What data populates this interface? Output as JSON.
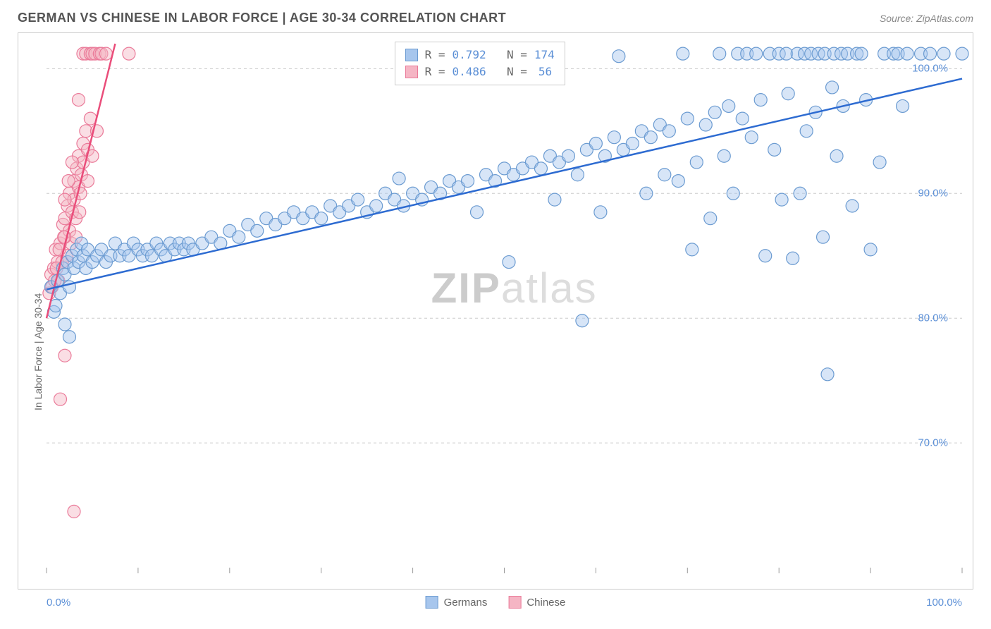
{
  "title": "GERMAN VS CHINESE IN LABOR FORCE | AGE 30-34 CORRELATION CHART",
  "source": "Source: ZipAtlas.com",
  "watermark": {
    "bold": "ZIP",
    "light": "atlas"
  },
  "ylabel": "In Labor Force | Age 30-34",
  "chart": {
    "type": "scatter",
    "xlim": [
      0,
      100
    ],
    "ylim": [
      60,
      102
    ],
    "yticks": [
      {
        "v": 70,
        "label": "70.0%"
      },
      {
        "v": 80,
        "label": "80.0%"
      },
      {
        "v": 90,
        "label": "90.0%"
      },
      {
        "v": 100,
        "label": "100.0%"
      }
    ],
    "xticks_major": [
      0,
      10,
      20,
      30,
      40,
      50,
      60,
      70,
      80,
      90,
      100
    ],
    "xrange_labels": {
      "left": "0.0%",
      "right": "100.0%"
    },
    "grid_color": "#cccccc",
    "background": "#ffffff",
    "marker_radius": 9,
    "marker_opacity": 0.45,
    "series": [
      {
        "name": "Germans",
        "fill": "#a7c6ed",
        "stroke": "#6b9bd1",
        "line_color": "#2d6bd1",
        "line_width": 2.5,
        "regression": {
          "x1": 0,
          "y1": 82.3,
          "x2": 100,
          "y2": 99.2
        },
        "R": "0.792",
        "N": "174",
        "points": [
          [
            0.5,
            82.5
          ],
          [
            0.8,
            80.5
          ],
          [
            1.0,
            81.0
          ],
          [
            1.2,
            83.0
          ],
          [
            1.5,
            82.0
          ],
          [
            1.8,
            84.0
          ],
          [
            2.0,
            83.5
          ],
          [
            2.3,
            84.5
          ],
          [
            2.5,
            82.5
          ],
          [
            2.8,
            85.0
          ],
          [
            3.0,
            84.0
          ],
          [
            3.3,
            85.5
          ],
          [
            3.5,
            84.5
          ],
          [
            3.8,
            86.0
          ],
          [
            4.0,
            85.0
          ],
          [
            4.3,
            84.0
          ],
          [
            4.5,
            85.5
          ],
          [
            5.0,
            84.5
          ],
          [
            5.5,
            85.0
          ],
          [
            6.0,
            85.5
          ],
          [
            6.5,
            84.5
          ],
          [
            7.0,
            85.0
          ],
          [
            7.5,
            86.0
          ],
          [
            8.0,
            85.0
          ],
          [
            8.5,
            85.5
          ],
          [
            9.0,
            85.0
          ],
          [
            9.5,
            86.0
          ],
          [
            10.0,
            85.5
          ],
          [
            10.5,
            85.0
          ],
          [
            11.0,
            85.5
          ],
          [
            11.5,
            85.0
          ],
          [
            12.0,
            86.0
          ],
          [
            12.5,
            85.5
          ],
          [
            13.0,
            85.0
          ],
          [
            13.5,
            86.0
          ],
          [
            14.0,
            85.5
          ],
          [
            14.5,
            86.0
          ],
          [
            15.0,
            85.5
          ],
          [
            15.5,
            86.0
          ],
          [
            16.0,
            85.5
          ],
          [
            17.0,
            86.0
          ],
          [
            18.0,
            86.5
          ],
          [
            19.0,
            86.0
          ],
          [
            20.0,
            87.0
          ],
          [
            21.0,
            86.5
          ],
          [
            22.0,
            87.5
          ],
          [
            23.0,
            87.0
          ],
          [
            24.0,
            88.0
          ],
          [
            25.0,
            87.5
          ],
          [
            26.0,
            88.0
          ],
          [
            27.0,
            88.5
          ],
          [
            28.0,
            88.0
          ],
          [
            29.0,
            88.5
          ],
          [
            30.0,
            88.0
          ],
          [
            31.0,
            89.0
          ],
          [
            32.0,
            88.5
          ],
          [
            33.0,
            89.0
          ],
          [
            34.0,
            89.5
          ],
          [
            35.0,
            88.5
          ],
          [
            36.0,
            89.0
          ],
          [
            37.0,
            90.0
          ],
          [
            38.0,
            89.5
          ],
          [
            38.5,
            91.2
          ],
          [
            39.0,
            89.0
          ],
          [
            40.0,
            90.0
          ],
          [
            41.0,
            89.5
          ],
          [
            42.0,
            90.5
          ],
          [
            43.0,
            90.0
          ],
          [
            44.0,
            91.0
          ],
          [
            45.0,
            90.5
          ],
          [
            46.0,
            91.0
          ],
          [
            47.0,
            88.5
          ],
          [
            48.0,
            91.5
          ],
          [
            49.0,
            91.0
          ],
          [
            50.0,
            92.0
          ],
          [
            50.5,
            84.5
          ],
          [
            51.0,
            91.5
          ],
          [
            52.0,
            92.0
          ],
          [
            53.0,
            92.5
          ],
          [
            54.0,
            92.0
          ],
          [
            55.0,
            93.0
          ],
          [
            55.5,
            89.5
          ],
          [
            56.0,
            92.5
          ],
          [
            57.0,
            93.0
          ],
          [
            58.0,
            91.5
          ],
          [
            58.5,
            79.8
          ],
          [
            59.0,
            93.5
          ],
          [
            60.0,
            94.0
          ],
          [
            60.5,
            88.5
          ],
          [
            61.0,
            93.0
          ],
          [
            62.0,
            94.5
          ],
          [
            62.5,
            101.0
          ],
          [
            63.0,
            93.5
          ],
          [
            64.0,
            94.0
          ],
          [
            65.0,
            95.0
          ],
          [
            65.5,
            90.0
          ],
          [
            66.0,
            94.5
          ],
          [
            67.0,
            95.5
          ],
          [
            67.5,
            91.5
          ],
          [
            68.0,
            95.0
          ],
          [
            69.0,
            91.0
          ],
          [
            69.5,
            101.2
          ],
          [
            70.0,
            96.0
          ],
          [
            70.5,
            85.5
          ],
          [
            71.0,
            92.5
          ],
          [
            72.0,
            95.5
          ],
          [
            72.5,
            88.0
          ],
          [
            73.0,
            96.5
          ],
          [
            73.5,
            101.2
          ],
          [
            74.0,
            93.0
          ],
          [
            74.5,
            97.0
          ],
          [
            75.0,
            90.0
          ],
          [
            75.5,
            101.2
          ],
          [
            76.0,
            96.0
          ],
          [
            76.5,
            101.2
          ],
          [
            77.0,
            94.5
          ],
          [
            77.5,
            101.2
          ],
          [
            78.0,
            97.5
          ],
          [
            78.5,
            85.0
          ],
          [
            79.0,
            101.2
          ],
          [
            79.5,
            93.5
          ],
          [
            80.0,
            101.2
          ],
          [
            80.3,
            89.5
          ],
          [
            80.8,
            101.2
          ],
          [
            81.0,
            98.0
          ],
          [
            81.5,
            84.8
          ],
          [
            82.0,
            101.2
          ],
          [
            82.3,
            90.0
          ],
          [
            82.8,
            101.2
          ],
          [
            83.0,
            95.0
          ],
          [
            83.5,
            101.2
          ],
          [
            84.0,
            96.5
          ],
          [
            84.3,
            101.2
          ],
          [
            84.8,
            86.5
          ],
          [
            85.0,
            101.2
          ],
          [
            85.3,
            75.5
          ],
          [
            85.8,
            98.5
          ],
          [
            86.0,
            101.2
          ],
          [
            86.3,
            93.0
          ],
          [
            86.8,
            101.2
          ],
          [
            87.0,
            97.0
          ],
          [
            87.5,
            101.2
          ],
          [
            88.0,
            89.0
          ],
          [
            88.5,
            101.2
          ],
          [
            89.0,
            101.2
          ],
          [
            89.5,
            97.5
          ],
          [
            90.0,
            85.5
          ],
          [
            91.0,
            92.5
          ],
          [
            91.5,
            101.2
          ],
          [
            92.5,
            101.2
          ],
          [
            93.0,
            101.2
          ],
          [
            93.5,
            97.0
          ],
          [
            94.0,
            101.2
          ],
          [
            95.5,
            101.2
          ],
          [
            96.5,
            101.2
          ],
          [
            98.0,
            101.2
          ],
          [
            100.0,
            101.2
          ],
          [
            2.0,
            79.5
          ],
          [
            2.5,
            78.5
          ]
        ]
      },
      {
        "name": "Chinese",
        "fill": "#f5b5c4",
        "stroke": "#ea7a99",
        "line_color": "#ea4d7a",
        "line_width": 2.5,
        "regression": {
          "x1": 0,
          "y1": 80.0,
          "x2": 7.5,
          "y2": 102
        },
        "R": "0.486",
        "N": "56",
        "points": [
          [
            0.3,
            82.0
          ],
          [
            0.5,
            83.5
          ],
          [
            0.8,
            84.0
          ],
          [
            1.0,
            85.5
          ],
          [
            1.2,
            84.5
          ],
          [
            1.5,
            86.0
          ],
          [
            1.8,
            87.5
          ],
          [
            2.0,
            86.5
          ],
          [
            2.0,
            88.0
          ],
          [
            2.3,
            89.0
          ],
          [
            2.5,
            87.0
          ],
          [
            2.5,
            90.0
          ],
          [
            2.8,
            88.5
          ],
          [
            3.0,
            91.0
          ],
          [
            3.0,
            89.5
          ],
          [
            3.3,
            92.0
          ],
          [
            3.5,
            90.5
          ],
          [
            3.5,
            93.0
          ],
          [
            3.8,
            91.5
          ],
          [
            4.0,
            94.0
          ],
          [
            4.0,
            92.5
          ],
          [
            4.3,
            95.0
          ],
          [
            4.5,
            93.5
          ],
          [
            4.8,
            96.0
          ],
          [
            2.0,
            77.0
          ],
          [
            1.5,
            73.5
          ],
          [
            3.0,
            64.5
          ],
          [
            3.5,
            97.5
          ],
          [
            4.0,
            101.2
          ],
          [
            4.3,
            101.2
          ],
          [
            4.8,
            101.2
          ],
          [
            5.0,
            101.2
          ],
          [
            5.3,
            101.2
          ],
          [
            5.8,
            101.2
          ],
          [
            6.0,
            101.2
          ],
          [
            6.5,
            101.2
          ],
          [
            2.2,
            85.0
          ],
          [
            2.7,
            86.0
          ],
          [
            3.2,
            88.0
          ],
          [
            3.7,
            90.0
          ],
          [
            1.3,
            83.0
          ],
          [
            1.7,
            84.5
          ],
          [
            4.5,
            91.0
          ],
          [
            5.0,
            93.0
          ],
          [
            5.5,
            95.0
          ],
          [
            0.6,
            82.5
          ],
          [
            0.9,
            83.0
          ],
          [
            1.1,
            84.0
          ],
          [
            9.0,
            101.2
          ],
          [
            2.0,
            89.5
          ],
          [
            2.4,
            91.0
          ],
          [
            2.8,
            92.5
          ],
          [
            3.2,
            86.5
          ],
          [
            3.6,
            88.5
          ],
          [
            1.4,
            85.5
          ],
          [
            1.9,
            86.5
          ]
        ]
      }
    ]
  },
  "legend_bottom": [
    {
      "label": "Germans",
      "fill": "#a7c6ed",
      "stroke": "#6b9bd1"
    },
    {
      "label": "Chinese",
      "fill": "#f5b5c4",
      "stroke": "#ea7a99"
    }
  ]
}
